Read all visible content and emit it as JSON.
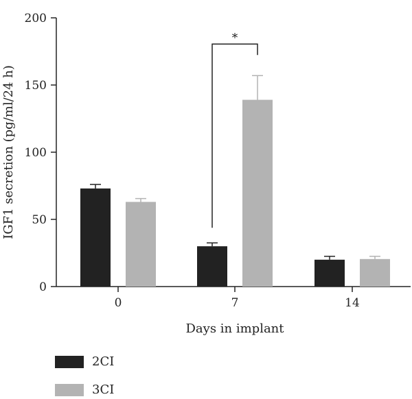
{
  "chart_data": {
    "type": "bar",
    "categories": [
      "0",
      "7",
      "14"
    ],
    "series": [
      {
        "name": "2CI",
        "values": [
          73,
          30,
          20
        ],
        "errors": [
          3,
          2.5,
          2.5
        ],
        "color": "#222222"
      },
      {
        "name": "3CI",
        "values": [
          63,
          139,
          20.5
        ],
        "errors": [
          2.5,
          18,
          2
        ],
        "color": "#b3b3b3"
      }
    ],
    "ylim": [
      0,
      200
    ],
    "yticks": [
      0,
      50,
      100,
      150,
      200
    ],
    "xlabel": "Days in implant",
    "ylabel": "IGF1 secretion (pg/ml/24 h)",
    "annotation": {
      "text": "*",
      "between_category": "7"
    },
    "grid": false,
    "legend_placement": "bottom-left"
  }
}
